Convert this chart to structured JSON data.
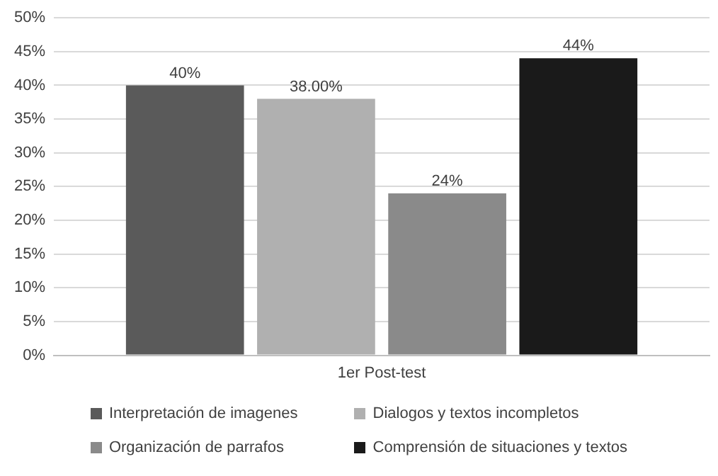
{
  "chart_data": {
    "type": "bar",
    "categories": [
      "1er Post-test"
    ],
    "series": [
      {
        "name": "Interpretación de imagenes",
        "color": "#5a5a5a",
        "values": [
          40
        ],
        "value_labels": [
          "40%"
        ]
      },
      {
        "name": "Dialogos y textos incompletos",
        "color": "#b0b0b0",
        "values": [
          38
        ],
        "value_labels": [
          "38.00%"
        ]
      },
      {
        "name": "Organización de parrafos",
        "color": "#8a8a8a",
        "values": [
          24
        ],
        "value_labels": [
          "24%"
        ]
      },
      {
        "name": "Comprensión de situaciones y textos",
        "color": "#1a1a1a",
        "values": [
          44
        ],
        "value_labels": [
          "44%"
        ]
      }
    ],
    "ylim": [
      0,
      50
    ],
    "yticks": [
      {
        "value": 0,
        "label": "0%"
      },
      {
        "value": 5,
        "label": "5%"
      },
      {
        "value": 10,
        "label": "10%"
      },
      {
        "value": 15,
        "label": "15%"
      },
      {
        "value": 20,
        "label": "20%"
      },
      {
        "value": 25,
        "label": "25%"
      },
      {
        "value": 30,
        "label": "30%"
      },
      {
        "value": 35,
        "label": "35%"
      },
      {
        "value": 40,
        "label": "40%"
      },
      {
        "value": 45,
        "label": "45%"
      },
      {
        "value": 50,
        "label": "50%"
      }
    ],
    "grid": "y",
    "legend": "bottom"
  }
}
